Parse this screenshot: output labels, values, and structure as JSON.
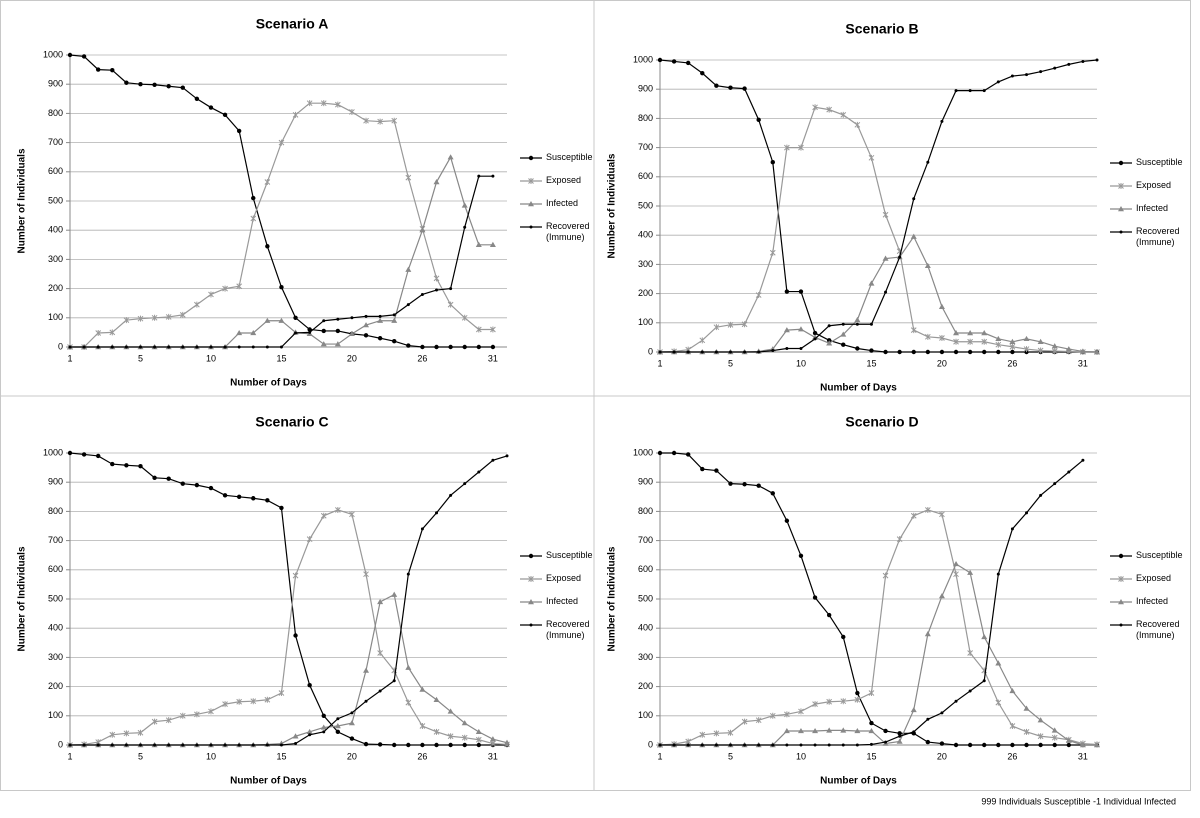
{
  "chart_data": [
    {
      "type": "line",
      "title": "Scenario A",
      "x_label": "Number of Days",
      "y_label": "Number of Individuals",
      "categories": [
        "1",
        null,
        null,
        null,
        null,
        "5",
        null,
        null,
        null,
        null,
        "10",
        null,
        null,
        null,
        null,
        "15",
        null,
        null,
        null,
        null,
        "20",
        null,
        null,
        null,
        null,
        "26",
        null,
        null,
        null,
        null,
        "31"
      ],
      "ylim": [
        0,
        1000
      ],
      "yticks": [
        0,
        100,
        200,
        300,
        400,
        500,
        600,
        700,
        800,
        900,
        1000
      ],
      "grid": true,
      "legend": "right",
      "series": [
        {
          "name": "Susceptible",
          "color": "#000000",
          "marker": "circle",
          "values": [
            1000,
            995,
            950,
            948,
            905,
            900,
            898,
            893,
            888,
            850,
            820,
            795,
            740,
            510,
            345,
            205,
            100,
            60,
            55,
            55,
            45,
            40,
            30,
            20,
            5,
            0,
            0,
            0,
            0,
            0,
            0
          ]
        },
        {
          "name": "Exposed",
          "color": "#999999",
          "marker": "x",
          "values": [
            0,
            0,
            48,
            50,
            92,
            97,
            100,
            103,
            110,
            145,
            180,
            200,
            208,
            440,
            565,
            700,
            795,
            835,
            835,
            830,
            805,
            775,
            772,
            775,
            580,
            405,
            235,
            145,
            100,
            60,
            60
          ]
        },
        {
          "name": "Infected",
          "color": "#888888",
          "marker": "triangle",
          "values": [
            0,
            0,
            0,
            0,
            0,
            0,
            0,
            0,
            0,
            0,
            0,
            0,
            48,
            48,
            90,
            90,
            50,
            45,
            10,
            10,
            45,
            75,
            90,
            90,
            265,
            400,
            565,
            650,
            485,
            350,
            350
          ]
        },
        {
          "name": "Recovered (Immune)",
          "color": "#000000",
          "marker": "dot",
          "values": [
            0,
            0,
            0,
            0,
            0,
            0,
            0,
            0,
            0,
            0,
            0,
            0,
            0,
            0,
            0,
            0,
            48,
            50,
            90,
            95,
            100,
            105,
            105,
            110,
            145,
            180,
            195,
            200,
            410,
            585,
            585
          ]
        }
      ]
    },
    {
      "type": "line",
      "title": "Scenario B",
      "x_label": "Number of Days",
      "y_label": "Number of Individuals",
      "categories": [
        "1",
        null,
        null,
        null,
        null,
        "5",
        null,
        null,
        null,
        null,
        "10",
        null,
        null,
        null,
        null,
        "15",
        null,
        null,
        null,
        null,
        "20",
        null,
        null,
        null,
        null,
        "26",
        null,
        null,
        null,
        null,
        "31",
        null
      ],
      "ylim": [
        0,
        1000
      ],
      "yticks": [
        0,
        100,
        200,
        300,
        400,
        500,
        600,
        700,
        800,
        900,
        1000
      ],
      "grid": true,
      "legend": "right",
      "series": [
        {
          "name": "Susceptible",
          "color": "#000000",
          "marker": "circle",
          "values": [
            1000,
            995,
            990,
            955,
            912,
            905,
            902,
            795,
            650,
            207,
            207,
            65,
            40,
            25,
            12,
            5,
            0,
            0,
            0,
            0,
            0,
            0,
            0,
            0,
            0,
            0,
            0,
            0,
            0,
            0,
            0,
            0
          ]
        },
        {
          "name": "Exposed",
          "color": "#999999",
          "marker": "x",
          "values": [
            0,
            2,
            8,
            40,
            85,
            93,
            95,
            195,
            340,
            700,
            700,
            838,
            830,
            812,
            778,
            665,
            470,
            345,
            75,
            52,
            48,
            35,
            35,
            35,
            25,
            18,
            10,
            5,
            3,
            2,
            0,
            0
          ]
        },
        {
          "name": "Infected",
          "color": "#888888",
          "marker": "triangle",
          "values": [
            0,
            0,
            0,
            0,
            0,
            0,
            0,
            2,
            10,
            75,
            78,
            50,
            30,
            60,
            110,
            235,
            320,
            325,
            395,
            295,
            155,
            65,
            65,
            65,
            45,
            35,
            45,
            35,
            20,
            10,
            2,
            0
          ]
        },
        {
          "name": "Recovered (Immune)",
          "color": "#000000",
          "marker": "dot",
          "values": [
            0,
            0,
            0,
            0,
            0,
            0,
            0,
            0,
            5,
            12,
            12,
            45,
            90,
            95,
            95,
            95,
            205,
            325,
            525,
            650,
            790,
            895,
            895,
            895,
            925,
            945,
            950,
            960,
            972,
            985,
            995,
            1000
          ]
        }
      ]
    },
    {
      "type": "line",
      "title": "Scenario C",
      "x_label": "Number of Days",
      "y_label": "Number of Individuals",
      "categories": [
        "1",
        null,
        null,
        null,
        null,
        "5",
        null,
        null,
        null,
        null,
        "10",
        null,
        null,
        null,
        null,
        "15",
        null,
        null,
        null,
        null,
        "20",
        null,
        null,
        null,
        null,
        "26",
        null,
        null,
        null,
        null,
        "31",
        null
      ],
      "ylim": [
        0,
        1000
      ],
      "yticks": [
        0,
        100,
        200,
        300,
        400,
        500,
        600,
        700,
        800,
        900,
        1000
      ],
      "grid": true,
      "legend": "right",
      "series": [
        {
          "name": "Susceptible",
          "color": "#000000",
          "marker": "circle",
          "values": [
            1000,
            995,
            990,
            962,
            958,
            955,
            915,
            912,
            895,
            890,
            880,
            855,
            850,
            845,
            838,
            812,
            375,
            205,
            100,
            45,
            22,
            3,
            2,
            0,
            0,
            0,
            0,
            0,
            0,
            0,
            0,
            0
          ]
        },
        {
          "name": "Exposed",
          "color": "#999999",
          "marker": "x",
          "values": [
            0,
            2,
            10,
            35,
            40,
            42,
            80,
            85,
            100,
            105,
            115,
            140,
            148,
            150,
            155,
            178,
            580,
            705,
            785,
            805,
            790,
            585,
            315,
            255,
            145,
            65,
            45,
            30,
            25,
            18,
            5,
            2
          ]
        },
        {
          "name": "Infected",
          "color": "#888888",
          "marker": "triangle",
          "values": [
            0,
            0,
            0,
            0,
            0,
            0,
            0,
            0,
            0,
            0,
            0,
            0,
            0,
            0,
            2,
            5,
            30,
            45,
            60,
            65,
            75,
            255,
            490,
            515,
            265,
            190,
            155,
            115,
            75,
            45,
            20,
            8
          ]
        },
        {
          "name": "Recovered (Immune)",
          "color": "#000000",
          "marker": "dot",
          "values": [
            0,
            0,
            0,
            0,
            0,
            0,
            0,
            0,
            0,
            0,
            0,
            0,
            0,
            0,
            0,
            0,
            5,
            35,
            45,
            90,
            110,
            150,
            185,
            220,
            585,
            740,
            795,
            855,
            895,
            935,
            975,
            990
          ]
        }
      ]
    },
    {
      "type": "line",
      "title": "Scenario D",
      "x_label": "Number of Days",
      "y_label": "Number of Individuals",
      "categories": [
        "1",
        null,
        null,
        null,
        null,
        "5",
        null,
        null,
        null,
        null,
        "10",
        null,
        null,
        null,
        null,
        "15",
        null,
        null,
        null,
        null,
        "20",
        null,
        null,
        null,
        null,
        "26",
        null,
        null,
        null,
        null,
        "31",
        null
      ],
      "ylim": [
        0,
        1000
      ],
      "yticks": [
        0,
        100,
        200,
        300,
        400,
        500,
        600,
        700,
        800,
        900,
        1000
      ],
      "grid": true,
      "legend": "right",
      "series": [
        {
          "name": "Susceptible",
          "color": "#000000",
          "marker": "circle",
          "values": [
            1000,
            1000,
            995,
            945,
            940,
            895,
            893,
            888,
            862,
            768,
            648,
            505,
            445,
            370,
            178,
            75,
            48,
            40,
            40,
            10,
            5,
            0,
            0,
            0,
            0,
            0,
            0,
            0,
            0,
            0,
            0,
            0
          ]
        },
        {
          "name": "Exposed",
          "color": "#999999",
          "marker": "x",
          "values": [
            0,
            3,
            12,
            35,
            40,
            42,
            80,
            85,
            100,
            105,
            115,
            140,
            148,
            150,
            155,
            178,
            580,
            705,
            785,
            805,
            790,
            585,
            315,
            255,
            145,
            65,
            45,
            30,
            25,
            18,
            5,
            2
          ]
        },
        {
          "name": "Infected",
          "color": "#888888",
          "marker": "triangle",
          "values": [
            0,
            0,
            0,
            0,
            0,
            0,
            0,
            0,
            0,
            48,
            48,
            48,
            50,
            50,
            48,
            48,
            5,
            12,
            120,
            380,
            510,
            620,
            590,
            370,
            280,
            185,
            125,
            85,
            50,
            15,
            0,
            0
          ]
        },
        {
          "name": "Recovered (Immune)",
          "color": "#000000",
          "marker": "dot",
          "values": [
            0,
            0,
            0,
            0,
            0,
            0,
            0,
            0,
            0,
            0,
            0,
            0,
            0,
            0,
            0,
            2,
            10,
            30,
            45,
            88,
            110,
            150,
            185,
            220,
            585,
            740,
            795,
            855,
            895,
            935,
            975,
            null
          ]
        }
      ]
    }
  ],
  "footnote": "999 Individuals Susceptible  -1 Individual Infected"
}
